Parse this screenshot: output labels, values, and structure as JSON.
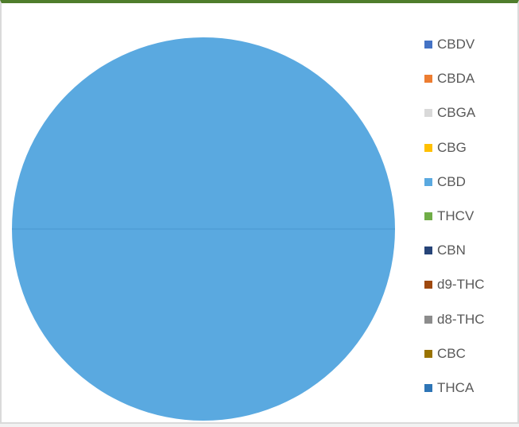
{
  "chart_data": {
    "type": "pie",
    "title": "",
    "legend_position": "right",
    "categories": [
      "CBDV",
      "CBDA",
      "CBGA",
      "CBG",
      "CBD",
      "THCV",
      "CBN",
      "d9-THC",
      "d8-THC",
      "CBC",
      "THCA"
    ],
    "values": [
      0,
      0,
      0,
      0,
      100,
      0,
      0,
      0,
      0,
      0,
      0
    ],
    "colors": [
      "#4472c4",
      "#ed7d31",
      "#d9d9d9",
      "#ffc000",
      "#5aa9e0",
      "#70ad47",
      "#264478",
      "#9e480e",
      "#8c8c8c",
      "#997300",
      "#2e75b6"
    ]
  },
  "colors": {
    "frame_top_border": "#4f7d2c",
    "legend_text": "#595959",
    "background": "#ffffff"
  }
}
